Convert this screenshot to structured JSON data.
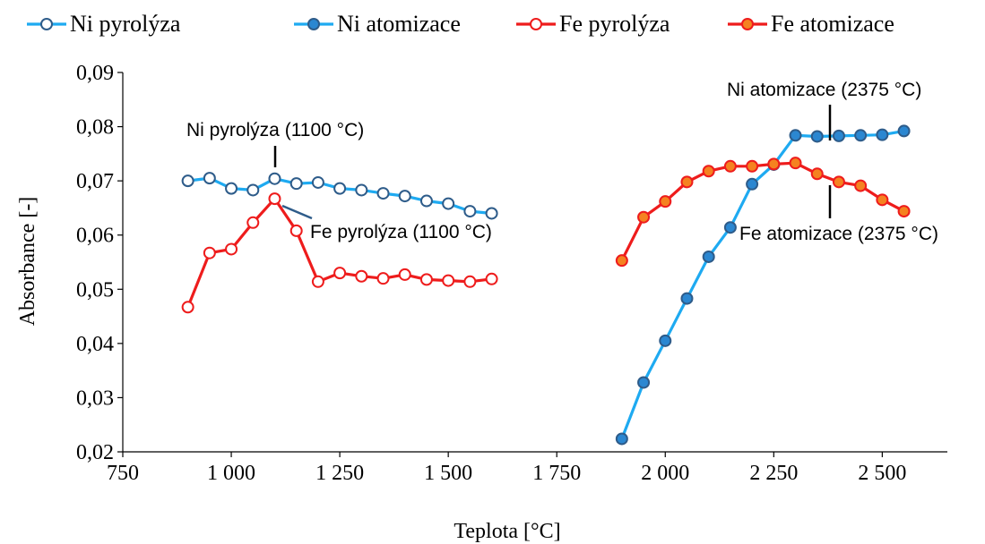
{
  "chart_data": {
    "type": "line",
    "xlabel": "Teplota [°C]",
    "ylabel": "Absorbance [-]",
    "xlim": [
      750,
      2650
    ],
    "ylim": [
      0.02,
      0.09
    ],
    "x_ticks": [
      750,
      1000,
      1250,
      1500,
      1750,
      2000,
      2250,
      2500
    ],
    "x_tick_labels": [
      "750",
      "1 000",
      "1 250",
      "1 500",
      "1 750",
      "2 000",
      "2 250",
      "2 500"
    ],
    "y_ticks": [
      0.02,
      0.03,
      0.04,
      0.05,
      0.06,
      0.07,
      0.08,
      0.09
    ],
    "y_tick_labels": [
      "0,02",
      "0,03",
      "0,04",
      "0,05",
      "0,06",
      "0,07",
      "0,08",
      "0,09"
    ],
    "grid": false,
    "legend_position": "top",
    "series": [
      {
        "name": "Ni pyrolýza",
        "line_color": "#1eaaf1",
        "marker_fill": "#ffffff",
        "marker_stroke": "#2e5c8a",
        "x": [
          900,
          950,
          1000,
          1050,
          1100,
          1150,
          1200,
          1250,
          1300,
          1350,
          1400,
          1450,
          1500,
          1550,
          1600
        ],
        "y": [
          0.07,
          0.0705,
          0.0686,
          0.0683,
          0.0704,
          0.0695,
          0.0697,
          0.0686,
          0.0683,
          0.0677,
          0.0672,
          0.0663,
          0.0658,
          0.0644,
          0.064
        ]
      },
      {
        "name": "Ni atomizace",
        "line_color": "#1eaaf1",
        "marker_fill": "#2b87d1",
        "marker_stroke": "#2e5c8a",
        "x": [
          1900,
          1950,
          2000,
          2050,
          2100,
          2150,
          2200,
          2250,
          2300,
          2350,
          2400,
          2450,
          2500,
          2550
        ],
        "y": [
          0.0224,
          0.0328,
          0.0405,
          0.0483,
          0.056,
          0.0614,
          0.0694,
          0.073,
          0.0784,
          0.0782,
          0.0783,
          0.0784,
          0.0785,
          0.0792
        ]
      },
      {
        "name": "Fe pyrolýza",
        "line_color": "#ee1c1c",
        "marker_fill": "#ffffff",
        "marker_stroke": "#ee1c1c",
        "x": [
          900,
          950,
          1000,
          1050,
          1100,
          1150,
          1200,
          1250,
          1300,
          1350,
          1400,
          1450,
          1500,
          1550,
          1600
        ],
        "y": [
          0.0467,
          0.0567,
          0.0574,
          0.0623,
          0.0667,
          0.0608,
          0.0514,
          0.053,
          0.0524,
          0.052,
          0.0527,
          0.0518,
          0.0516,
          0.0514,
          0.0519
        ]
      },
      {
        "name": "Fe atomizace",
        "line_color": "#ee1c1c",
        "marker_fill": "#f58220",
        "marker_stroke": "#ee1c1c",
        "x": [
          1900,
          1950,
          2000,
          2050,
          2100,
          2150,
          2200,
          2250,
          2300,
          2350,
          2400,
          2450,
          2500,
          2550
        ],
        "y": [
          0.0553,
          0.0633,
          0.0662,
          0.0698,
          0.0718,
          0.0727,
          0.0727,
          0.0731,
          0.0733,
          0.0713,
          0.0698,
          0.0691,
          0.0665,
          0.0644
        ]
      }
    ],
    "annotations": [
      {
        "text": "Ni pyrolýza (1100 °C)",
        "x": 1100
      },
      {
        "text": "Fe pyrolýza (1100 °C)",
        "x": 1100
      },
      {
        "text": "Ni atomizace (2375 °C)",
        "x": 2375
      },
      {
        "text": "Fe atomizace (2375 °C)",
        "x": 2375
      }
    ]
  }
}
